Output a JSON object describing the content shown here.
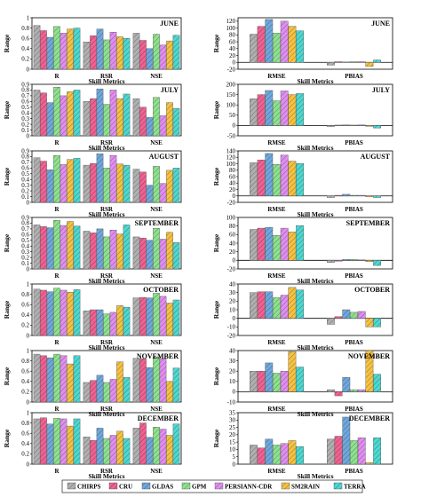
{
  "figure": {
    "legend": [
      "CHIRPS",
      "CRU",
      "GLDAS",
      "GPM",
      "PERSIANN-CDR",
      "SM2RAIN",
      "TERRA"
    ],
    "colors": [
      "#b0b0b0",
      "#f06292",
      "#6fa8dc",
      "#8ee28e",
      "#e08ef0",
      "#f5c242",
      "#4dd8d0"
    ]
  },
  "chart_data": [
    {
      "type": "bar",
      "title": "JUNE",
      "categories": [
        "R",
        "RSR",
        "NSE"
      ],
      "ylabel": "Range",
      "xlabel": "Skill Metrics",
      "ylim": [
        0,
        1
      ],
      "yticks": [
        0,
        0.2,
        0.4,
        0.6,
        0.8,
        1
      ],
      "series": [
        {
          "name": "CHIRPS",
          "values": [
            0.85,
            0.53,
            0.7
          ]
        },
        {
          "name": "CRU",
          "values": [
            0.75,
            0.65,
            0.56
          ]
        },
        {
          "name": "GLDAS",
          "values": [
            0.62,
            0.78,
            0.4
          ]
        },
        {
          "name": "GPM",
          "values": [
            0.83,
            0.57,
            0.68
          ]
        },
        {
          "name": "PERSIANN-CDR",
          "values": [
            0.7,
            0.72,
            0.47
          ]
        },
        {
          "name": "SM2RAIN",
          "values": [
            0.78,
            0.63,
            0.55
          ]
        },
        {
          "name": "TERRA",
          "values": [
            0.8,
            0.6,
            0.66
          ]
        }
      ]
    },
    {
      "type": "bar",
      "title": "JUNE",
      "categories": [
        "RMSE",
        "PBIAS"
      ],
      "ylabel": "Range",
      "xlabel": "Skill Metrics",
      "ylim": [
        -20,
        130
      ],
      "yticks": [
        -20,
        0,
        20,
        40,
        60,
        80,
        100,
        120
      ],
      "series": [
        {
          "name": "CHIRPS",
          "values": [
            82,
            -8
          ]
        },
        {
          "name": "CRU",
          "values": [
            105,
            2
          ]
        },
        {
          "name": "GLDAS",
          "values": [
            125,
            1
          ]
        },
        {
          "name": "GPM",
          "values": [
            85,
            2
          ]
        },
        {
          "name": "PERSIANN-CDR",
          "values": [
            120,
            2
          ]
        },
        {
          "name": "SM2RAIN",
          "values": [
            105,
            -12
          ]
        },
        {
          "name": "TERRA",
          "values": [
            92,
            7
          ]
        }
      ]
    },
    {
      "type": "bar",
      "title": "JULY",
      "categories": [
        "R",
        "RSR",
        "NSE"
      ],
      "ylabel": "Range",
      "xlabel": "Skill Metrics",
      "ylim": [
        0,
        0.9
      ],
      "yticks": [
        0,
        0.1,
        0.2,
        0.3,
        0.4,
        0.5,
        0.6,
        0.7,
        0.8,
        0.9
      ],
      "series": [
        {
          "name": "CHIRPS",
          "values": [
            0.8,
            0.6,
            0.65
          ]
        },
        {
          "name": "CRU",
          "values": [
            0.75,
            0.65,
            0.5
          ]
        },
        {
          "name": "GLDAS",
          "values": [
            0.58,
            0.82,
            0.32
          ]
        },
        {
          "name": "GPM",
          "values": [
            0.85,
            0.55,
            0.67
          ]
        },
        {
          "name": "PERSIANN-CDR",
          "values": [
            0.7,
            0.8,
            0.35
          ]
        },
        {
          "name": "SM2RAIN",
          "values": [
            0.77,
            0.65,
            0.58
          ]
        },
        {
          "name": "TERRA",
          "values": [
            0.8,
            0.73,
            0.48
          ]
        }
      ]
    },
    {
      "type": "bar",
      "title": "JULY",
      "categories": [
        "RMSE",
        "PBIAS"
      ],
      "ylabel": "Range",
      "xlabel": "Skill Metrics",
      "ylim": [
        -50,
        200
      ],
      "yticks": [
        -50,
        0,
        50,
        100,
        150,
        200
      ],
      "series": [
        {
          "name": "CHIRPS",
          "values": [
            130,
            -5
          ]
        },
        {
          "name": "CRU",
          "values": [
            150,
            2
          ]
        },
        {
          "name": "GLDAS",
          "values": [
            170,
            3
          ]
        },
        {
          "name": "GPM",
          "values": [
            120,
            2
          ]
        },
        {
          "name": "PERSIANN-CDR",
          "values": [
            168,
            3
          ]
        },
        {
          "name": "SM2RAIN",
          "values": [
            150,
            -4
          ]
        },
        {
          "name": "TERRA",
          "values": [
            155,
            -12
          ]
        }
      ]
    },
    {
      "type": "bar",
      "title": "AUGUST",
      "categories": [
        "R",
        "RSR",
        "NSE"
      ],
      "ylabel": "Range",
      "xlabel": "Skill Metrics",
      "ylim": [
        0,
        0.9
      ],
      "yticks": [
        0,
        0.1,
        0.2,
        0.3,
        0.4,
        0.5,
        0.6,
        0.7,
        0.8,
        0.9
      ],
      "series": [
        {
          "name": "CHIRPS",
          "values": [
            0.78,
            0.65,
            0.58
          ]
        },
        {
          "name": "CRU",
          "values": [
            0.72,
            0.68,
            0.53
          ]
        },
        {
          "name": "GLDAS",
          "values": [
            0.57,
            0.85,
            0.3
          ]
        },
        {
          "name": "GPM",
          "values": [
            0.82,
            0.6,
            0.63
          ]
        },
        {
          "name": "PERSIANN-CDR",
          "values": [
            0.66,
            0.82,
            0.33
          ]
        },
        {
          "name": "SM2RAIN",
          "values": [
            0.75,
            0.67,
            0.56
          ]
        },
        {
          "name": "TERRA",
          "values": [
            0.77,
            0.65,
            0.6
          ]
        }
      ]
    },
    {
      "type": "bar",
      "title": "AUGUST",
      "categories": [
        "RMSE",
        "PBIAS"
      ],
      "ylabel": "Range",
      "xlabel": "Skill Metrics",
      "ylim": [
        -20,
        140
      ],
      "yticks": [
        -20,
        0,
        20,
        40,
        60,
        80,
        100,
        120,
        140
      ],
      "series": [
        {
          "name": "CHIRPS",
          "values": [
            103,
            -5
          ]
        },
        {
          "name": "CRU",
          "values": [
            112,
            2
          ]
        },
        {
          "name": "GLDAS",
          "values": [
            132,
            5
          ]
        },
        {
          "name": "GPM",
          "values": [
            98,
            2
          ]
        },
        {
          "name": "PERSIANN-CDR",
          "values": [
            127,
            2
          ]
        },
        {
          "name": "SM2RAIN",
          "values": [
            108,
            -3
          ]
        },
        {
          "name": "TERRA",
          "values": [
            101,
            -5
          ]
        }
      ]
    },
    {
      "type": "bar",
      "title": "SEPTEMBER",
      "categories": [
        "R",
        "RSR",
        "NSE"
      ],
      "ylabel": "Range",
      "xlabel": "Skill Metrics",
      "ylim": [
        0,
        0.9
      ],
      "yticks": [
        0,
        0.1,
        0.2,
        0.3,
        0.4,
        0.5,
        0.6,
        0.7,
        0.8,
        0.9
      ],
      "series": [
        {
          "name": "CHIRPS",
          "values": [
            0.77,
            0.66,
            0.56
          ]
        },
        {
          "name": "CRU",
          "values": [
            0.74,
            0.63,
            0.54
          ]
        },
        {
          "name": "GLDAS",
          "values": [
            0.72,
            0.7,
            0.5
          ]
        },
        {
          "name": "GPM",
          "values": [
            0.85,
            0.56,
            0.71
          ]
        },
        {
          "name": "PERSIANN-CDR",
          "values": [
            0.76,
            0.68,
            0.52
          ]
        },
        {
          "name": "SM2RAIN",
          "values": [
            0.83,
            0.61,
            0.64
          ]
        },
        {
          "name": "TERRA",
          "values": [
            0.75,
            0.77,
            0.46
          ]
        }
      ]
    },
    {
      "type": "bar",
      "title": "SEPTEMBER",
      "categories": [
        "RMSE",
        "PBIAS"
      ],
      "ylabel": "Range",
      "xlabel": "Skill Metrics",
      "ylim": [
        -20,
        100
      ],
      "yticks": [
        -20,
        0,
        20,
        40,
        60,
        80,
        100
      ],
      "series": [
        {
          "name": "CHIRPS",
          "values": [
            72,
            -5
          ]
        },
        {
          "name": "CRU",
          "values": [
            75,
            -2
          ]
        },
        {
          "name": "GLDAS",
          "values": [
            77,
            2
          ]
        },
        {
          "name": "GPM",
          "values": [
            58,
            2
          ]
        },
        {
          "name": "PERSIANN-CDR",
          "values": [
            75,
            1
          ]
        },
        {
          "name": "SM2RAIN",
          "values": [
            66,
            -3
          ]
        },
        {
          "name": "TERRA",
          "values": [
            81,
            -12
          ]
        }
      ]
    },
    {
      "type": "bar",
      "title": "OCTOBER",
      "categories": [
        "R",
        "RSR",
        "NSE"
      ],
      "ylabel": "Range",
      "xlabel": "Skill Metrics",
      "ylim": [
        0,
        1
      ],
      "yticks": [
        0,
        0.2,
        0.4,
        0.6,
        0.8,
        1
      ],
      "series": [
        {
          "name": "CHIRPS",
          "values": [
            0.9,
            0.48,
            0.73
          ]
        },
        {
          "name": "CRU",
          "values": [
            0.88,
            0.5,
            0.74
          ]
        },
        {
          "name": "GLDAS",
          "values": [
            0.85,
            0.5,
            0.73
          ]
        },
        {
          "name": "GPM",
          "values": [
            0.92,
            0.42,
            0.82
          ]
        },
        {
          "name": "PERSIANN-CDR",
          "values": [
            0.88,
            0.45,
            0.76
          ]
        },
        {
          "name": "SM2RAIN",
          "values": [
            0.84,
            0.58,
            0.63
          ]
        },
        {
          "name": "TERRA",
          "values": [
            0.89,
            0.55,
            0.69
          ]
        }
      ]
    },
    {
      "type": "bar",
      "title": "OCTOBER",
      "categories": [
        "RMSE",
        "PBIAS"
      ],
      "ylabel": "Range",
      "xlabel": "Skill Metrics",
      "ylim": [
        -20,
        40
      ],
      "yticks": [
        -20,
        -10,
        0,
        10,
        20,
        30,
        40
      ],
      "series": [
        {
          "name": "CHIRPS",
          "values": [
            30,
            -7
          ]
        },
        {
          "name": "CRU",
          "values": [
            31,
            2
          ]
        },
        {
          "name": "GLDAS",
          "values": [
            31,
            10
          ]
        },
        {
          "name": "GPM",
          "values": [
            24,
            7
          ]
        },
        {
          "name": "PERSIANN-CDR",
          "values": [
            27,
            8
          ]
        },
        {
          "name": "SM2RAIN",
          "values": [
            36,
            -10
          ]
        },
        {
          "name": "TERRA",
          "values": [
            33,
            -10
          ]
        }
      ]
    },
    {
      "type": "bar",
      "title": "NOVEMBER",
      "categories": [
        "R",
        "RSR",
        "NSE"
      ],
      "ylabel": "Range",
      "xlabel": "Skill Metrics",
      "ylim": [
        0,
        1
      ],
      "yticks": [
        0,
        0.2,
        0.4,
        0.6,
        0.8,
        1
      ],
      "series": [
        {
          "name": "CHIRPS",
          "values": [
            0.93,
            0.38,
            0.85
          ]
        },
        {
          "name": "CRU",
          "values": [
            0.9,
            0.42,
            0.84
          ]
        },
        {
          "name": "GLDAS",
          "values": [
            0.86,
            0.52,
            0.67
          ]
        },
        {
          "name": "GPM",
          "values": [
            0.93,
            0.38,
            0.87
          ]
        },
        {
          "name": "PERSIANN-CDR",
          "values": [
            0.9,
            0.44,
            0.84
          ]
        },
        {
          "name": "SM2RAIN",
          "values": [
            0.74,
            0.78,
            0.4
          ]
        },
        {
          "name": "TERRA",
          "values": [
            0.9,
            0.48,
            0.66
          ]
        }
      ]
    },
    {
      "type": "bar",
      "title": "NOVEMBER",
      "categories": [
        "RMSE",
        "PBIAS"
      ],
      "ylabel": "Range",
      "xlabel": "Skill Metrics",
      "ylim": [
        -10,
        40
      ],
      "yticks": [
        -10,
        0,
        10,
        20,
        30,
        40
      ],
      "series": [
        {
          "name": "CHIRPS",
          "values": [
            20,
            2
          ]
        },
        {
          "name": "CRU",
          "values": [
            20,
            -4
          ]
        },
        {
          "name": "GLDAS",
          "values": [
            28,
            14
          ]
        },
        {
          "name": "GPM",
          "values": [
            18,
            2
          ]
        },
        {
          "name": "PERSIANN-CDR",
          "values": [
            20,
            2
          ]
        },
        {
          "name": "SM2RAIN",
          "values": [
            39,
            40
          ]
        },
        {
          "name": "TERRA",
          "values": [
            24,
            17
          ]
        }
      ]
    },
    {
      "type": "bar",
      "title": "DECEMBER",
      "categories": [
        "R",
        "RSR",
        "NSE"
      ],
      "ylabel": "Range",
      "xlabel": "Skill Metrics",
      "ylim": [
        0,
        1
      ],
      "yticks": [
        0,
        0.2,
        0.4,
        0.6,
        0.8,
        1
      ],
      "series": [
        {
          "name": "CHIRPS",
          "values": [
            0.88,
            0.53,
            0.7
          ]
        },
        {
          "name": "CRU",
          "values": [
            0.9,
            0.46,
            0.8
          ]
        },
        {
          "name": "GLDAS",
          "values": [
            0.78,
            0.7,
            0.52
          ]
        },
        {
          "name": "GPM",
          "values": [
            0.89,
            0.5,
            0.72
          ]
        },
        {
          "name": "PERSIANN-CDR",
          "values": [
            0.88,
            0.56,
            0.68
          ]
        },
        {
          "name": "SM2RAIN",
          "values": [
            0.74,
            0.64,
            0.56
          ]
        },
        {
          "name": "TERRA",
          "values": [
            0.88,
            0.5,
            0.78
          ]
        }
      ]
    },
    {
      "type": "bar",
      "title": "DECEMBER",
      "categories": [
        "RMSE",
        "PBIAS"
      ],
      "ylabel": "Range",
      "xlabel": "Skill Metrics",
      "ylim": [
        0,
        35
      ],
      "yticks": [
        0,
        5,
        10,
        15,
        20,
        25,
        30,
        35
      ],
      "series": [
        {
          "name": "CHIRPS",
          "values": [
            13,
            17
          ]
        },
        {
          "name": "CRU",
          "values": [
            11,
            19
          ]
        },
        {
          "name": "GLDAS",
          "values": [
            17,
            32
          ]
        },
        {
          "name": "GPM",
          "values": [
            13,
            16
          ]
        },
        {
          "name": "PERSIANN-CDR",
          "values": [
            14,
            18
          ]
        },
        {
          "name": "SM2RAIN",
          "values": [
            16,
            1
          ]
        },
        {
          "name": "TERRA",
          "values": [
            12,
            18
          ]
        }
      ]
    }
  ]
}
